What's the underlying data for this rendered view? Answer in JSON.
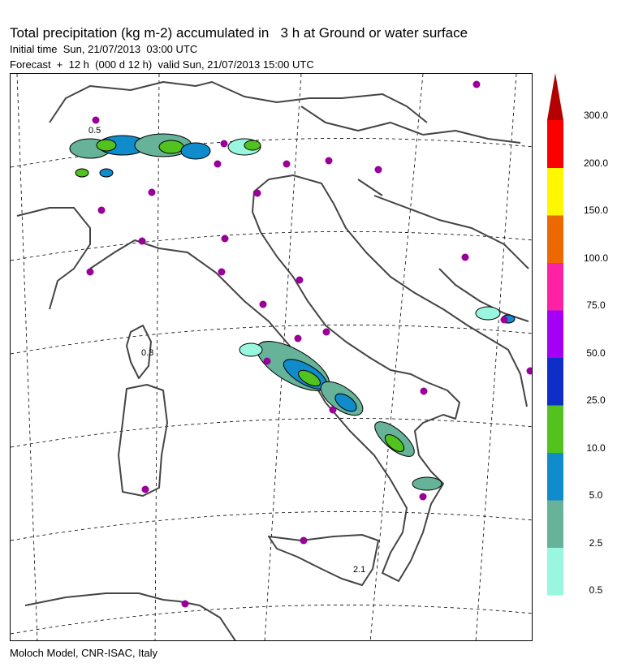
{
  "header": {
    "title": "Total precipitation (kg m-2) accumulated in   3 h at Ground or water surface",
    "initial_time": "Initial time  Sun, 21/07/2013  03:00 UTC",
    "forecast": "Forecast  +  12 h  (000 d 12 h)  valid Sun, 21/07/2013 15:00 UTC"
  },
  "footer": "Moloch Model, CNR-ISAC, Italy",
  "legend": {
    "levels": [
      "0.5",
      "2.5",
      "5.0",
      "10.0",
      "25.0",
      "50.0",
      "75.0",
      "100.0",
      "150.0",
      "200.0",
      "300.0"
    ],
    "colors": [
      "#99f7e0",
      "#66b399",
      "#108bcc",
      "#52c31e",
      "#0e2ec7",
      "#a400f6",
      "#fc22a3",
      "#ec6800",
      "#fff700",
      "#fb0000",
      "#b30000"
    ]
  },
  "contour_labels": [
    "0.5",
    "0.3",
    "2.1"
  ],
  "colors": {
    "coast": "#444444",
    "grid": "#000000",
    "station": "#990099"
  }
}
